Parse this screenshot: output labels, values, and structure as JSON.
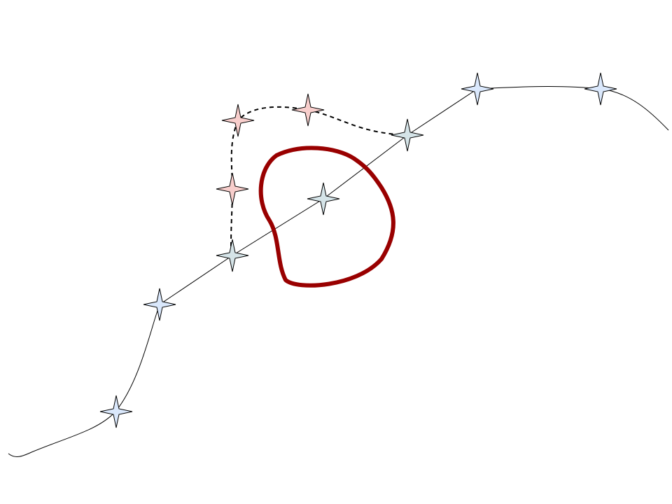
{
  "colors": {
    "background": "#ffffff",
    "path_line": "#000000",
    "detour_line": "#000000",
    "obstacle": "#990000",
    "star_blue": "#dae8fc",
    "star_green": "#d5e4e8",
    "star_red": "#f8cecc",
    "star_outline": "#000000"
  },
  "icons": {
    "path_node": "four-point-star-icon",
    "obstacle": "closed-loop-obstacle"
  }
}
